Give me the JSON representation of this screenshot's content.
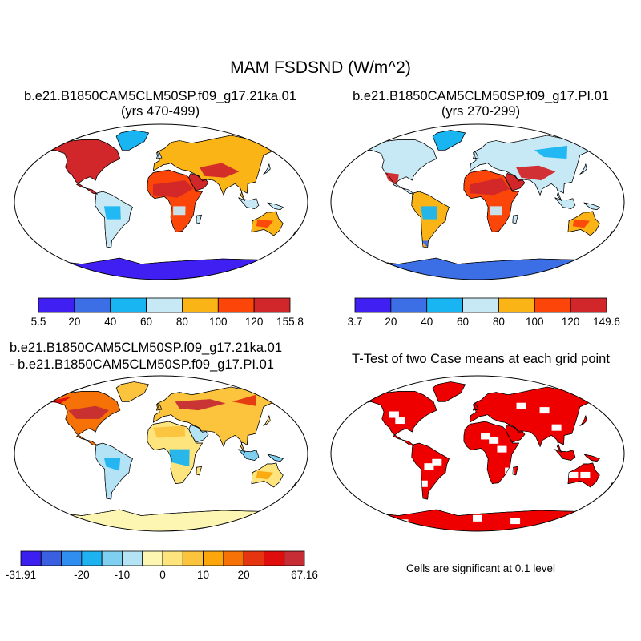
{
  "title": "MAM FSDSND (W/m^2)",
  "panels": {
    "top_left": {
      "title_line1": "b.e21.B1850CAM5CLM50SP.f09_g17.21ka.01",
      "title_line2": "(yrs 470-499)"
    },
    "top_right": {
      "title_line1": "b.e21.B1850CAM5CLM50SP.f09_g17.PI.01",
      "title_line2": "(yrs 270-299)"
    },
    "bottom_left": {
      "title_line1": "b.e21.B1850CAM5CLM50SP.f09_g17.21ka.01",
      "title_line2": "- b.e21.B1850CAM5CLM50SP.f09_g17.PI.01"
    },
    "bottom_right": {
      "title_line1": "T-Test of two Case means at each grid point",
      "note": "Cells are significant at 0.1 level"
    }
  },
  "colors": {
    "land_outline": "#000000",
    "ttest_fill": "#ee0000"
  },
  "chart_data": [
    {
      "type": "heatmap",
      "name": "21ka case mean",
      "colorbar": {
        "labels": [
          "5.5",
          "20",
          "40",
          "60",
          "80",
          "100",
          "120",
          "155.8"
        ],
        "colors": [
          "#3f1ff2",
          "#3c6ee6",
          "#19b5f2",
          "#c7e9f5",
          "#fbb416",
          "#fb4509",
          "#d2272a"
        ]
      }
    },
    {
      "type": "heatmap",
      "name": "PI case mean",
      "colorbar": {
        "labels": [
          "3.7",
          "20",
          "40",
          "60",
          "80",
          "100",
          "120",
          "149.6"
        ],
        "colors": [
          "#3f1ff2",
          "#3c6ee6",
          "#19b5f2",
          "#c7e9f5",
          "#fbb416",
          "#fb4509",
          "#d2272a"
        ]
      }
    },
    {
      "type": "heatmap",
      "name": "difference 21ka - PI",
      "colorbar": {
        "labels": [
          "-31.91",
          "-20",
          "-10",
          "0",
          "10",
          "20",
          "67.16"
        ],
        "colors": [
          "#3b1ff0",
          "#3a5fe0",
          "#2f8ef0",
          "#1eb3f0",
          "#7fd0f0",
          "#b4e3f5",
          "#fdf6b3",
          "#fde47c",
          "#fcc33c",
          "#fba70c",
          "#f67206",
          "#e53510",
          "#e00d0d",
          "#c62d34"
        ]
      }
    },
    {
      "type": "heatmap",
      "name": "T-Test significance",
      "colorbar": null
    }
  ]
}
